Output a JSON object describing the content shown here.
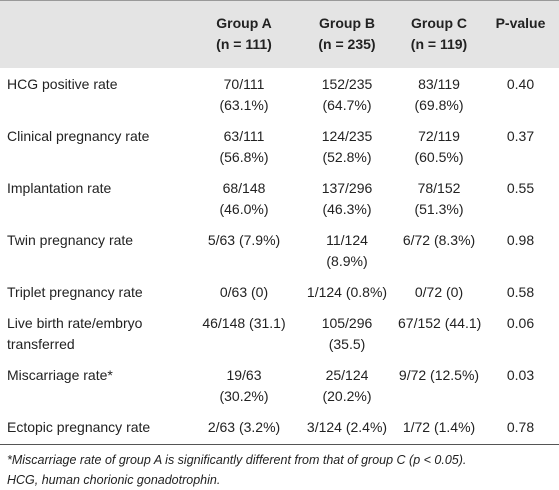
{
  "table": {
    "header": [
      [
        "",
        ""
      ],
      [
        "Group A",
        "(n = 111)"
      ],
      [
        "Group B",
        "(n = 235)"
      ],
      [
        "Group C",
        "(n = 119)"
      ],
      [
        "P-value"
      ]
    ],
    "rows": [
      [
        [
          "HCG positive rate"
        ],
        [
          "70/111",
          "(63.1%)"
        ],
        [
          "152/235",
          "(64.7%)"
        ],
        [
          "83/119",
          "(69.8%)"
        ],
        [
          "0.40"
        ]
      ],
      [
        [
          "Clinical pregnancy rate"
        ],
        [
          "63/111",
          "(56.8%)"
        ],
        [
          "124/235",
          "(52.8%)"
        ],
        [
          "72/119",
          "(60.5%)"
        ],
        [
          "0.37"
        ]
      ],
      [
        [
          "Implantation rate"
        ],
        [
          "68/148",
          "(46.0%)"
        ],
        [
          "137/296",
          "(46.3%)"
        ],
        [
          "78/152",
          "(51.3%)"
        ],
        [
          "0.55"
        ]
      ],
      [
        [
          "Twin pregnancy rate"
        ],
        [
          "5/63 (7.9%)"
        ],
        [
          "11/124",
          "(8.9%)"
        ],
        [
          "6/72 (8.3%)"
        ],
        [
          "0.98"
        ]
      ],
      [
        [
          "Triplet pregnancy rate"
        ],
        [
          "0/63 (0)"
        ],
        [
          "1/124 (0.8%)"
        ],
        [
          "0/72 (0)"
        ],
        [
          "0.58"
        ]
      ],
      [
        [
          "Live birth rate/embryo",
          "transferred"
        ],
        [
          "46/148 (31.1)"
        ],
        [
          "105/296",
          "(35.5)"
        ],
        [
          "67/152 (44.1)"
        ],
        [
          "0.06"
        ]
      ],
      [
        [
          "Miscarriage rate*"
        ],
        [
          "19/63",
          "(30.2%)"
        ],
        [
          "25/124",
          "(20.2%)"
        ],
        [
          "9/72 (12.5%)"
        ],
        [
          "0.03"
        ]
      ],
      [
        [
          "Ectopic pregnancy rate"
        ],
        [
          "2/63 (3.2%)"
        ],
        [
          "3/124 (2.4%)"
        ],
        [
          "1/72 (1.4%)"
        ],
        [
          "0.78"
        ]
      ]
    ],
    "footnotes": [
      "*Miscarriage rate of group A is significantly different from that of group C (p < 0.05).",
      "HCG, human chorionic gonadotrophin."
    ]
  }
}
